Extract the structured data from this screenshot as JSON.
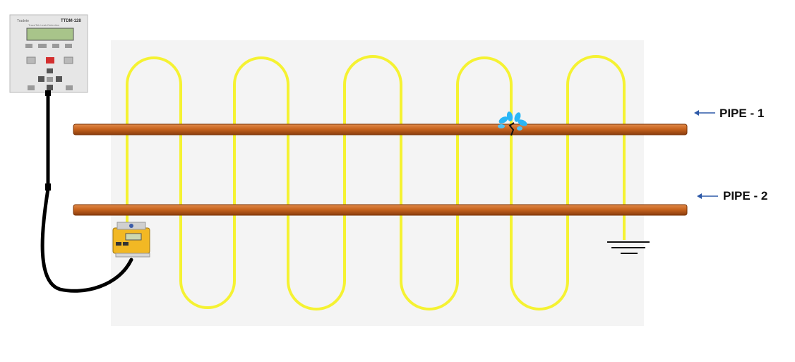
{
  "pipes": [
    {
      "label": "PIPE - 1",
      "has_leak": true
    },
    {
      "label": "PIPE - 2",
      "has_leak": false
    }
  ],
  "controller": {
    "model": "TTDM-128",
    "brand": "Tradete",
    "subtitle": "TraceTek Leak Detection"
  },
  "colors": {
    "pipe": "#c8641e",
    "sensing_cable": "#f5f232",
    "background_panel": "#f4f4f4",
    "leader_cable": "#000000",
    "leak_water": "#29b6f6",
    "arrow": "#2e5aa8",
    "interface_module": "#f2b824"
  },
  "icons": {
    "leak": "water-splash-icon",
    "ground": "ground-symbol-icon",
    "arrow": "left-arrow-icon"
  },
  "sensing_cable": {
    "loops_top": 5,
    "loops_bottom": 4
  }
}
